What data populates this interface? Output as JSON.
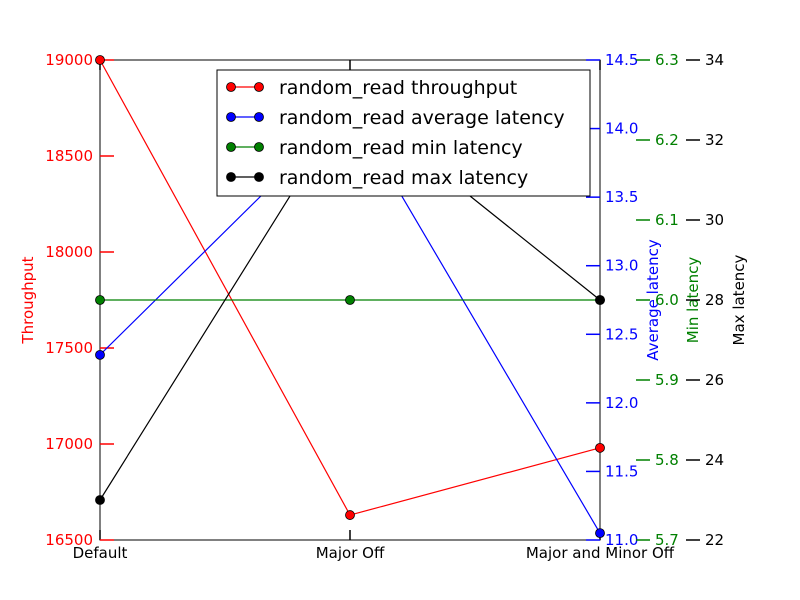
{
  "chart_data": {
    "type": "line",
    "categories": [
      "Default",
      "Major Off",
      "Major and Minor Off"
    ],
    "series": [
      {
        "name": "random_read throughput",
        "axis": "Throughput",
        "color": "#ff0000",
        "values": [
          19000,
          16630,
          16980
        ],
        "ylim": [
          16500,
          19000
        ],
        "ticks": [
          "16500",
          "17000",
          "17500",
          "18000",
          "18500",
          "19000"
        ],
        "tick_values": [
          16500,
          17000,
          17500,
          18000,
          18500,
          19000
        ]
      },
      {
        "name": "random_read average latency",
        "axis": "Average latency",
        "color": "#0000ff",
        "values": [
          12.35,
          14.15,
          11.05
        ],
        "ylim": [
          11.0,
          14.5
        ],
        "ticks": [
          "11.0",
          "11.5",
          "12.0",
          "12.5",
          "13.0",
          "13.5",
          "14.0",
          "14.5"
        ],
        "tick_values": [
          11.0,
          11.5,
          12.0,
          12.5,
          13.0,
          13.5,
          14.0,
          14.5
        ]
      },
      {
        "name": "random_read min latency",
        "axis": "Min latency",
        "color": "#008000",
        "values": [
          6.0,
          6.0,
          6.0
        ],
        "ylim": [
          5.7,
          6.3
        ],
        "ticks": [
          "5.7",
          "5.8",
          "5.9",
          "6.0",
          "6.1",
          "6.2",
          "6.3"
        ],
        "tick_values": [
          5.7,
          5.8,
          5.9,
          6.0,
          6.1,
          6.2,
          6.3
        ]
      },
      {
        "name": "random_read max latency",
        "axis": "Max latency",
        "color": "#000000",
        "values": [
          23.0,
          33.0,
          28.0
        ],
        "ylim": [
          22,
          34
        ],
        "ticks": [
          "22",
          "24",
          "26",
          "28",
          "30",
          "32",
          "34"
        ],
        "tick_values": [
          22,
          24,
          26,
          28,
          30,
          32,
          34
        ]
      }
    ],
    "legend_location": "upper-right",
    "grid": false
  }
}
